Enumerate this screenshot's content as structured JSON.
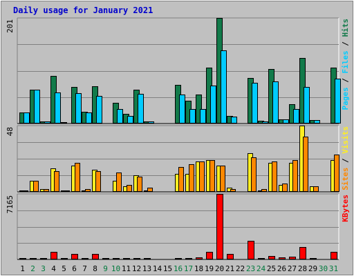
{
  "title": "Daily usage for January 2021",
  "colors": {
    "background": "#c0c0c0",
    "plot": "#c0c0c0",
    "title": "#0000cc",
    "hits": "#127a4a",
    "files": "#00ccff",
    "pages": "#00ccff",
    "visits": "#ffee22",
    "sites": "#ff8800",
    "kbytes": "#ff0000",
    "weekday_label": "#000000",
    "weekend_label": "#007a3d"
  },
  "chart_data": [
    {
      "type": "bar",
      "name": "hits-files-pages",
      "categories": [
        "1",
        "2",
        "3",
        "4",
        "5",
        "6",
        "7",
        "8",
        "9",
        "10",
        "11",
        "12",
        "13",
        "14",
        "15",
        "16",
        "17",
        "18",
        "19",
        "20",
        "21",
        "22",
        "23",
        "24",
        "25",
        "26",
        "27",
        "28",
        "29",
        "30",
        "31"
      ],
      "weekend_days": [
        "2",
        "3",
        "9",
        "10",
        "16",
        "17",
        "23",
        "24",
        "30",
        "31"
      ],
      "ymax": 201,
      "ytick_label": "201",
      "right_labels": [
        "Hits",
        "Files",
        "Pages"
      ],
      "series": [
        {
          "name": "Hits",
          "values": [
            21,
            64,
            4,
            90,
            2,
            69,
            22,
            71,
            0,
            40,
            18,
            64,
            4,
            0,
            0,
            74,
            43,
            55,
            107,
            201,
            14,
            0,
            87,
            5,
            104,
            8,
            37,
            125,
            6,
            0,
            106
          ]
        },
        {
          "name": "Files",
          "values": [
            21,
            64,
            4,
            59,
            0,
            58,
            21,
            52,
            0,
            27,
            15,
            57,
            4,
            0,
            0,
            55,
            28,
            28,
            72,
            139,
            13,
            0,
            77,
            4,
            80,
            8,
            28,
            70,
            6,
            0,
            86
          ]
        }
      ]
    },
    {
      "type": "bar",
      "name": "visits-sites",
      "categories": [
        "1",
        "2",
        "3",
        "4",
        "5",
        "6",
        "7",
        "8",
        "9",
        "10",
        "11",
        "12",
        "13",
        "14",
        "15",
        "16",
        "17",
        "18",
        "19",
        "20",
        "21",
        "22",
        "23",
        "24",
        "25",
        "26",
        "27",
        "28",
        "29",
        "30",
        "31"
      ],
      "ymax": 48,
      "ytick_label": "48",
      "right_labels": [
        "Visits",
        "Sites"
      ],
      "series": [
        {
          "name": "Visits",
          "values": [
            1,
            8,
            2,
            17,
            1,
            19,
            1,
            16,
            0,
            8,
            4,
            12,
            1,
            0,
            0,
            13,
            13,
            22,
            23,
            19,
            3,
            0,
            28,
            1,
            21,
            5,
            21,
            48,
            4,
            0,
            23
          ]
        },
        {
          "name": "Sites",
          "values": [
            1,
            8,
            2,
            15,
            1,
            21,
            2,
            15,
            0,
            14,
            5,
            11,
            3,
            0,
            0,
            18,
            20,
            22,
            23,
            19,
            2,
            0,
            25,
            2,
            22,
            6,
            23,
            40,
            4,
            0,
            27
          ]
        }
      ]
    },
    {
      "type": "bar",
      "name": "kbytes",
      "categories": [
        "1",
        "2",
        "3",
        "4",
        "5",
        "6",
        "7",
        "8",
        "9",
        "10",
        "11",
        "12",
        "13",
        "14",
        "15",
        "16",
        "17",
        "18",
        "19",
        "20",
        "21",
        "22",
        "23",
        "24",
        "25",
        "26",
        "27",
        "28",
        "29",
        "30",
        "31"
      ],
      "ymax": 7165,
      "ytick_label": "7165",
      "right_labels": [
        "KBytes"
      ],
      "series": [
        {
          "name": "KBytes",
          "values": [
            60,
            60,
            60,
            860,
            60,
            630,
            60,
            630,
            60,
            60,
            60,
            120,
            60,
            0,
            0,
            120,
            180,
            240,
            800,
            7165,
            630,
            0,
            2050,
            180,
            370,
            250,
            320,
            1360,
            60,
            0,
            800
          ]
        }
      ]
    }
  ]
}
